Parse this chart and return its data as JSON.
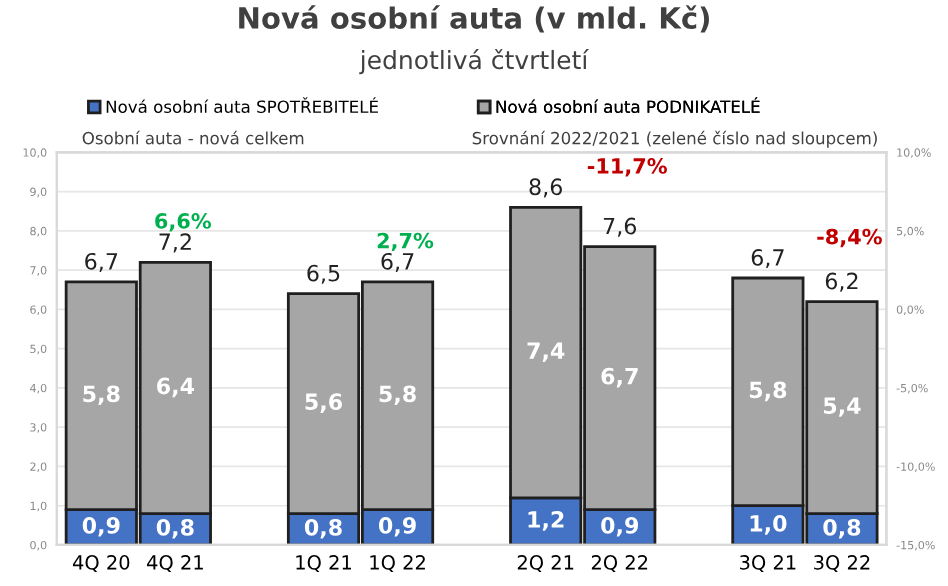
{
  "chart_data": {
    "type": "bar",
    "title": "Nová osobní auta (v mld. Kč)",
    "subtitle": "jednotlivá čtvrtletí",
    "categories": [
      "4Q 20",
      "4Q 21",
      null,
      "1Q 21",
      "1Q 22",
      null,
      "2Q 21",
      "2Q 22",
      null,
      "3Q 21",
      "3Q 22"
    ],
    "stacked": true,
    "series": [
      {
        "name": "Nová osobní auta SPOTŘEBITELÉ",
        "color": "#4472c4",
        "values": [
          0.9,
          0.8,
          null,
          0.8,
          0.9,
          null,
          1.2,
          0.9,
          null,
          1.0,
          0.8
        ],
        "value_labels": [
          "0,9",
          "0,8",
          null,
          "0,8",
          "0,9",
          null,
          "1,2",
          "0,9",
          null,
          "1,0",
          "0,8"
        ]
      },
      {
        "name": "Nová osobní auta PODNIKATELÉ",
        "color": "#a6a6a6",
        "values": [
          5.8,
          6.4,
          null,
          5.6,
          5.8,
          null,
          7.4,
          6.7,
          null,
          5.8,
          5.4
        ],
        "value_labels": [
          "5,8",
          "6,4",
          null,
          "5,6",
          "5,8",
          null,
          "7,4",
          "6,7",
          null,
          "5,8",
          "5,4"
        ]
      }
    ],
    "totals": [
      "6,7",
      "7,2",
      null,
      "6,5",
      "6,7",
      null,
      "8,6",
      "7,6",
      null,
      "6,7",
      "6,2"
    ],
    "ylim": [
      0,
      10
    ],
    "yticks": [
      {
        "value": 0,
        "label": "0,0"
      },
      {
        "value": 1,
        "label": "1,0"
      },
      {
        "value": 2,
        "label": "2,0"
      },
      {
        "value": 3,
        "label": "3,0"
      },
      {
        "value": 4,
        "label": "4,0"
      },
      {
        "value": 5,
        "label": "5,0"
      },
      {
        "value": 6,
        "label": "6,0"
      },
      {
        "value": 7,
        "label": "7,0"
      },
      {
        "value": 8,
        "label": "8,0"
      },
      {
        "value": 9,
        "label": "9,0"
      },
      {
        "value": 10,
        "label": "10,0"
      }
    ],
    "y2lim": [
      -15,
      10
    ],
    "y2ticks": [
      {
        "value": -15,
        "label": "-15,0%"
      },
      {
        "value": -10,
        "label": "-10,0%"
      },
      {
        "value": -5,
        "label": "-5,0%"
      },
      {
        "value": 0,
        "label": "0,0%"
      },
      {
        "value": 5,
        "label": "5,0%"
      },
      {
        "value": 10,
        "label": "10,0%"
      }
    ],
    "grid": "y",
    "legend": "top",
    "annotations": [
      {
        "text": "Osobní auta - nová celkem"
      },
      {
        "text": "Srovnání 2022/2021 (zelené číslo nad sloupcem)"
      },
      "6,6%",
      "2,7%",
      "-11,7%",
      "-8,4%"
    ]
  }
}
